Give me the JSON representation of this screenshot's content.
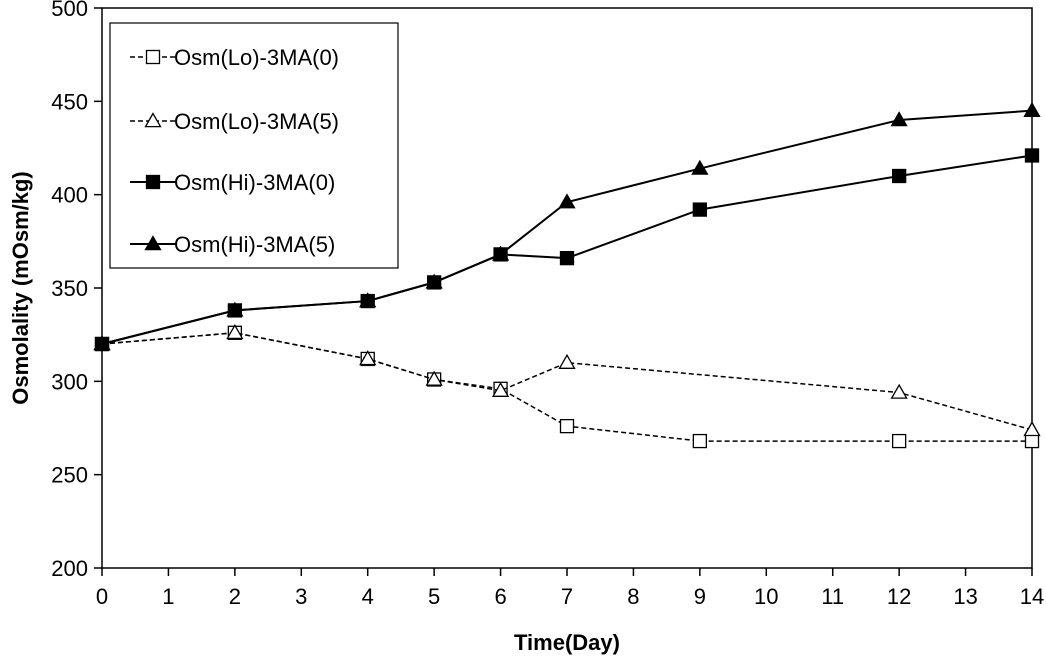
{
  "chart_data": {
    "type": "line",
    "title": "",
    "xlabel": "Time(Day)",
    "ylabel": "Osmolality (mOsm/kg)",
    "xlim": [
      0,
      14
    ],
    "ylim": [
      200,
      500
    ],
    "xticks": [
      0,
      1,
      2,
      3,
      4,
      5,
      6,
      7,
      8,
      9,
      10,
      11,
      12,
      13,
      14
    ],
    "yticks": [
      200,
      250,
      300,
      350,
      400,
      450,
      500
    ],
    "grid": false,
    "legend_position": "top-left",
    "series": [
      {
        "name": "Osm(Lo)-3MA(0)",
        "marker": "open-square",
        "line": "dashed",
        "color": "#000000",
        "x": [
          0,
          2,
          4,
          5,
          6,
          7,
          9,
          12,
          14
        ],
        "y": [
          320,
          326,
          312,
          301,
          296,
          276,
          268,
          268,
          268
        ]
      },
      {
        "name": "Osm(Lo)-3MA(5)",
        "marker": "open-triangle",
        "line": "dashed",
        "color": "#000000",
        "x": [
          0,
          2,
          4,
          5,
          6,
          7,
          12,
          14
        ],
        "y": [
          320,
          326,
          312,
          301,
          295,
          310,
          294,
          274
        ]
      },
      {
        "name": "Osm(Hi)-3MA(0)",
        "marker": "filled-square",
        "line": "solid",
        "color": "#000000",
        "x": [
          0,
          2,
          4,
          5,
          6,
          7,
          9,
          12,
          14
        ],
        "y": [
          320,
          338,
          343,
          353,
          368,
          366,
          392,
          410,
          421
        ]
      },
      {
        "name": "Osm(Hi)-3MA(5)",
        "marker": "filled-triangle",
        "line": "solid",
        "color": "#000000",
        "x": [
          0,
          2,
          4,
          5,
          6,
          7,
          9,
          12,
          14
        ],
        "y": [
          320,
          338,
          343,
          353,
          368,
          396,
          414,
          440,
          445
        ]
      }
    ]
  }
}
